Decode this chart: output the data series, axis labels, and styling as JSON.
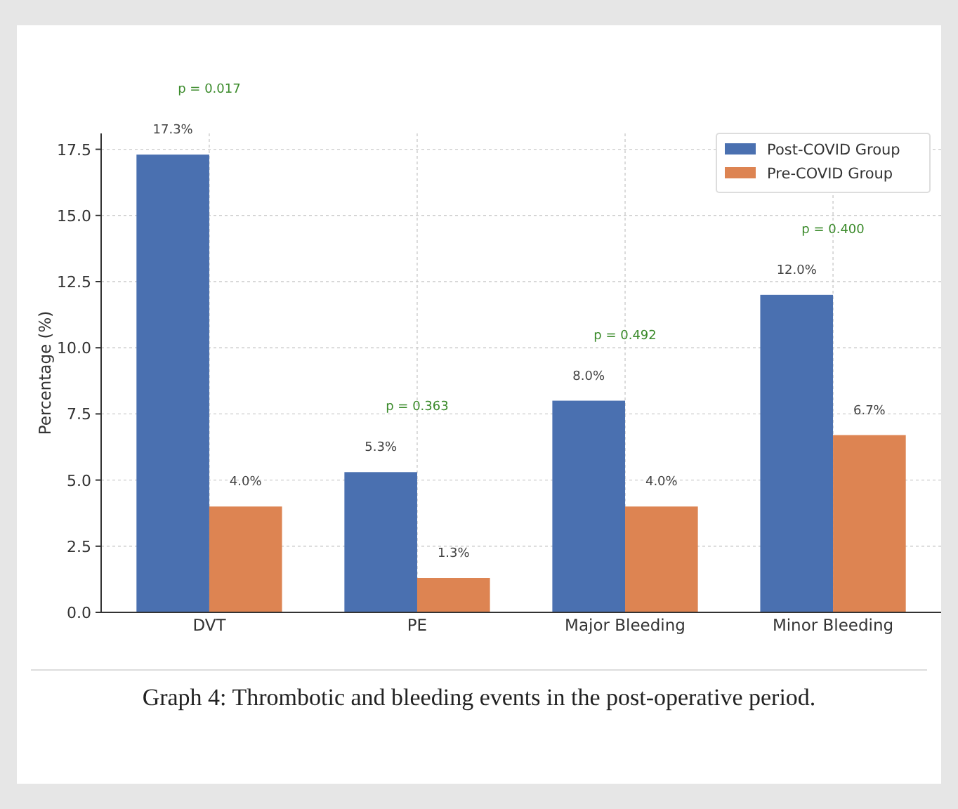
{
  "chart_data": {
    "type": "bar",
    "title": "Graph 4: Thrombotic and bleeding events in the post-operative period.",
    "ylabel": "Percentage (%)",
    "categories": [
      "DVT",
      "PE",
      "Major Bleeding",
      "Minor Bleeding"
    ],
    "series": [
      {
        "name": "Post-COVID Group",
        "color": "#4a70b0",
        "values": [
          17.3,
          5.3,
          8.0,
          12.0
        ],
        "value_labels": [
          "17.3%",
          "5.3%",
          "8.0%",
          "12.0%"
        ]
      },
      {
        "name": "Pre-COVID Group",
        "color": "#dd8452",
        "values": [
          4.0,
          1.3,
          4.0,
          6.7
        ],
        "value_labels": [
          "4.0%",
          "1.3%",
          "4.0%",
          "6.7%"
        ]
      }
    ],
    "annotations": [
      "p = 0.017",
      "p = 0.363",
      "p = 0.492",
      "p = 0.400"
    ],
    "ylim": [
      0,
      18.1
    ],
    "yticks": [
      {
        "value": 0,
        "label": "0.0"
      },
      {
        "value": 2.5,
        "label": "2.5"
      },
      {
        "value": 5,
        "label": "5.0"
      },
      {
        "value": 7.5,
        "label": "7.5"
      },
      {
        "value": 10,
        "label": "10.0"
      },
      {
        "value": 12.5,
        "label": "12.5"
      },
      {
        "value": 15,
        "label": "15.0"
      },
      {
        "value": 17.5,
        "label": "17.5"
      }
    ],
    "grid": true,
    "legend": "top right"
  }
}
